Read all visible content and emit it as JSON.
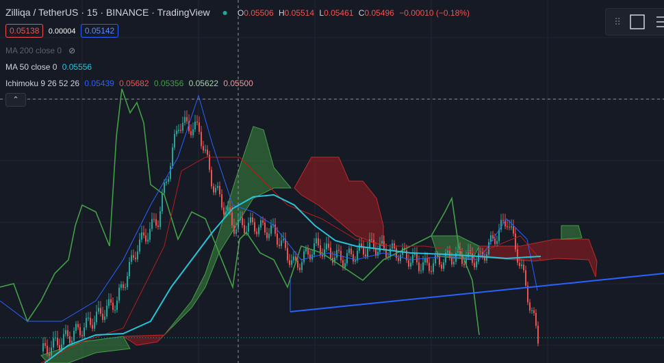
{
  "header": {
    "symbol": "Zilliqa / TetherUS",
    "interval": "15",
    "exchange": "BINANCE",
    "source": "TradingView",
    "ohlc": {
      "o_label": "O",
      "o": "0.05506",
      "h_label": "H",
      "h": "0.05514",
      "l_label": "L",
      "l": "0.05461",
      "c_label": "C",
      "c": "0.05496",
      "change": "−0.00010 (−0.18%)"
    }
  },
  "quote": {
    "bid": "0.05138",
    "spread": "0.00004",
    "ask": "0.05142"
  },
  "indicators": [
    {
      "name": "MA 200 close 0",
      "values": []
    },
    {
      "name": "MA 50 close 0",
      "values": [
        "0.05556"
      ]
    },
    {
      "name": "Ichimoku 9 26 52 26",
      "values": [
        "0.05439",
        "0.05682",
        "0.05356",
        "0.05622",
        "0.05500"
      ]
    }
  ]
}
